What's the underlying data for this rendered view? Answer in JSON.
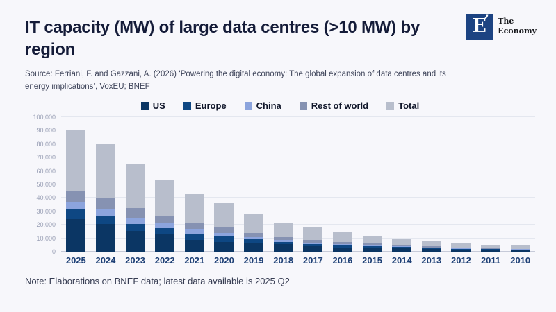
{
  "page": {
    "title": "IT capacity (MW) of large data centres (>10 MW) by region",
    "source": "Source: Ferriani, F. and Gazzani, A. (2026) ‘Powering the digital economy: The global expansion of data centres and its energy implications’, VoxEU; BNEF",
    "note": "Note: Elaborations on BNEF data; latest data available is 2025 Q2"
  },
  "logo": {
    "mark": "E",
    "mark_accent": "’",
    "name_line1": "The",
    "name_line2": "Economy",
    "brand_color": "#1c4382"
  },
  "chart_data": {
    "type": "bar",
    "stacked": true,
    "title": "IT capacity (MW) of large data centres (>10 MW) by region",
    "categories": [
      "2025",
      "2024",
      "2023",
      "2022",
      "2021",
      "2020",
      "2019",
      "2018",
      "2017",
      "2016",
      "2015",
      "2014",
      "2013",
      "2012",
      "2011",
      "2010"
    ],
    "series": [
      {
        "name": "US",
        "color": "#0b3664",
        "values": [
          24000,
          20500,
          15500,
          13300,
          8800,
          7300,
          6600,
          5600,
          4100,
          3200,
          3000,
          2550,
          2050,
          1400,
          1200,
          1000
        ]
      },
      {
        "name": "Europe",
        "color": "#0e4783",
        "values": [
          7500,
          6500,
          5100,
          4400,
          4200,
          4300,
          2600,
          1700,
          1500,
          1600,
          1300,
          1000,
          850,
          650,
          600,
          700
        ]
      },
      {
        "name": "China",
        "color": "#8ca4dd",
        "values": [
          5300,
          5000,
          4300,
          3800,
          4000,
          2500,
          1700,
          1400,
          1000,
          800,
          600,
          450,
          250,
          300,
          250,
          200
        ]
      },
      {
        "name": "Rest of world",
        "color": "#8692b2",
        "values": [
          8500,
          8000,
          7600,
          5100,
          4500,
          4000,
          2900,
          2200,
          2400,
          1700,
          1100,
          700,
          750,
          700,
          550,
          400
        ]
      },
      {
        "name": "Total",
        "color": "#b8becc",
        "values": [
          45300,
          40000,
          32500,
          26600,
          21500,
          18100,
          13800,
          10900,
          9000,
          7300,
          6000,
          4700,
          3900,
          3050,
          2600,
          2300
        ]
      }
    ],
    "ylim": [
      0,
      100000
    ],
    "ytick_step": 10000,
    "xlabel": "",
    "ylabel": "",
    "grid": true,
    "legend_position": "top",
    "colors": {
      "background": "#f7f7fb",
      "gridline": "#e4e7ef",
      "axis_line": "#c6cad8",
      "ytick_text": "#9aa0b6",
      "xtick_text": "#1e4076",
      "title_text": "#141b38"
    }
  }
}
